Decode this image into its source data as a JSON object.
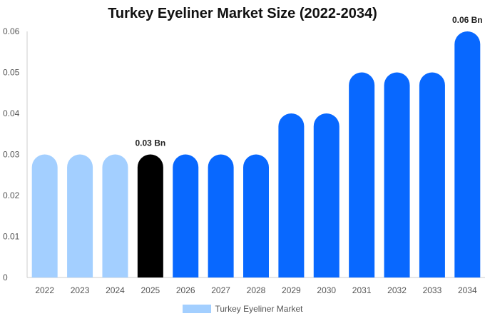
{
  "chart_data": {
    "type": "bar",
    "title": "Turkey Eyeliner Market Size (2022-2034)",
    "xlabel": "",
    "ylabel": "",
    "categories": [
      "2022",
      "2023",
      "2024",
      "2025",
      "2026",
      "2027",
      "2028",
      "2029",
      "2030",
      "2031",
      "2032",
      "2033",
      "2034"
    ],
    "series": [
      {
        "name": "Turkey Eyeliner Market",
        "values": [
          0.03,
          0.03,
          0.03,
          0.03,
          0.03,
          0.03,
          0.03,
          0.04,
          0.04,
          0.05,
          0.05,
          0.05,
          0.06
        ]
      }
    ],
    "ylim": [
      0,
      0.06
    ],
    "yticks": [
      "0",
      "0.01",
      "0.02",
      "0.03",
      "0.04",
      "0.05",
      "0.06"
    ],
    "data_labels": [
      {
        "category": "2025",
        "text": "0.03 Bn"
      },
      {
        "category": "2034",
        "text": "0.06 Bn"
      }
    ],
    "bar_colors": [
      "#a3cfff",
      "#a3cfff",
      "#a3cfff",
      "#000000",
      "#0868ff",
      "#0868ff",
      "#0868ff",
      "#0868ff",
      "#0868ff",
      "#0868ff",
      "#0868ff",
      "#0868ff",
      "#0868ff"
    ],
    "legend_color": "#a3cfff",
    "grid": false,
    "legend_position": "bottom"
  }
}
